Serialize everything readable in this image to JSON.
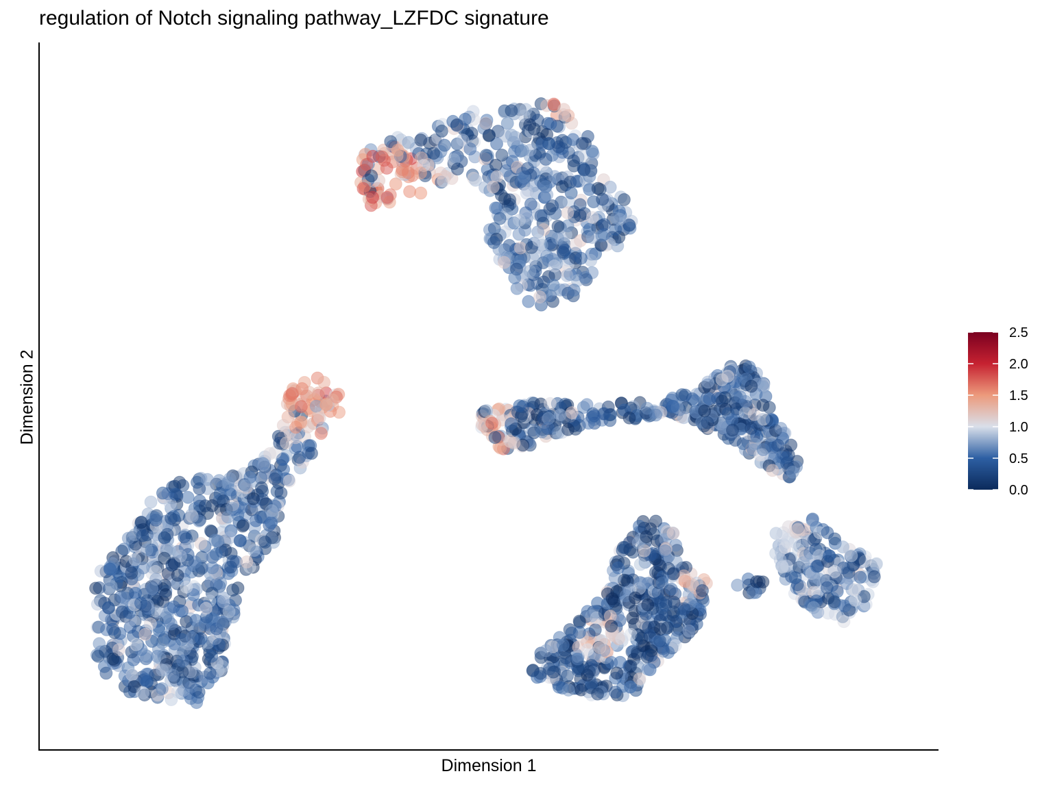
{
  "chart_data": {
    "type": "scatter",
    "title": "regulation of Notch signaling pathway_LZFDC signature",
    "xlabel": "Dimension 1",
    "ylabel": "Dimension 2",
    "x_ticks": "none",
    "y_ticks": "none",
    "xlim": [
      0,
      1
    ],
    "ylim": [
      0,
      1
    ],
    "grid": false,
    "legend": "right",
    "colorbar": {
      "min": 0.0,
      "max": 2.5,
      "ticks": [
        "0.0",
        "0.5",
        "1.0",
        "1.5",
        "2.0",
        "2.5"
      ],
      "colors": [
        "#0b2a5b",
        "#2d5fa3",
        "#d9dfea",
        "#ec9a7c",
        "#c62231",
        "#7a0020"
      ],
      "stops": [
        0.0,
        0.5,
        1.0,
        1.5,
        2.0,
        2.5
      ]
    },
    "point_alpha": 0.5,
    "clusters": [
      {
        "id": "top",
        "n": 520,
        "color_base": 0.55,
        "shape": [
          [
            0.35,
            0.86
          ],
          [
            0.43,
            0.91
          ],
          [
            0.5,
            0.93
          ],
          [
            0.58,
            0.94
          ],
          [
            0.62,
            0.9
          ],
          [
            0.63,
            0.84
          ],
          [
            0.66,
            0.8
          ],
          [
            0.68,
            0.74
          ],
          [
            0.64,
            0.71
          ],
          [
            0.6,
            0.64
          ],
          [
            0.55,
            0.63
          ],
          [
            0.52,
            0.68
          ],
          [
            0.5,
            0.74
          ],
          [
            0.51,
            0.8
          ],
          [
            0.47,
            0.83
          ],
          [
            0.42,
            0.8
          ],
          [
            0.36,
            0.78
          ],
          [
            0.35,
            0.82
          ]
        ],
        "hot": [
          [
            0.37,
            0.83,
            0.05,
            1.6
          ],
          [
            0.42,
            0.82,
            0.04,
            1.3
          ],
          [
            0.6,
            0.93,
            0.03,
            1.5
          ]
        ]
      },
      {
        "id": "bottom-left",
        "n": 760,
        "color_base": 0.5,
        "shape": [
          [
            0.04,
            0.24
          ],
          [
            0.1,
            0.34
          ],
          [
            0.15,
            0.38
          ],
          [
            0.21,
            0.38
          ],
          [
            0.25,
            0.42
          ],
          [
            0.27,
            0.52
          ],
          [
            0.32,
            0.53
          ],
          [
            0.33,
            0.48
          ],
          [
            0.3,
            0.42
          ],
          [
            0.26,
            0.36
          ],
          [
            0.25,
            0.28
          ],
          [
            0.21,
            0.21
          ],
          [
            0.19,
            0.09
          ],
          [
            0.16,
            0.04
          ],
          [
            0.07,
            0.05
          ],
          [
            0.04,
            0.1
          ],
          [
            0.04,
            0.18
          ]
        ],
        "hot": [
          [
            0.3,
            0.48,
            0.05,
            1.4
          ],
          [
            0.28,
            0.52,
            0.04,
            1.6
          ]
        ]
      },
      {
        "id": "right-arm",
        "n": 430,
        "color_base": 0.45,
        "shape": [
          [
            0.49,
            0.45
          ],
          [
            0.49,
            0.48
          ],
          [
            0.52,
            0.49
          ],
          [
            0.58,
            0.49
          ],
          [
            0.64,
            0.49
          ],
          [
            0.7,
            0.49
          ],
          [
            0.75,
            0.51
          ],
          [
            0.79,
            0.55
          ],
          [
            0.82,
            0.54
          ],
          [
            0.84,
            0.47
          ],
          [
            0.87,
            0.4
          ],
          [
            0.86,
            0.36
          ],
          [
            0.82,
            0.4
          ],
          [
            0.78,
            0.44
          ],
          [
            0.72,
            0.47
          ],
          [
            0.64,
            0.46
          ],
          [
            0.58,
            0.44
          ],
          [
            0.52,
            0.41
          ]
        ],
        "hot": [
          [
            0.5,
            0.44,
            0.03,
            1.5
          ],
          [
            0.52,
            0.47,
            0.02,
            1.2
          ]
        ]
      },
      {
        "id": "right-lobe",
        "n": 200,
        "color_base": 0.65,
        "shape": [
          [
            0.84,
            0.3
          ],
          [
            0.88,
            0.32
          ],
          [
            0.92,
            0.28
          ],
          [
            0.96,
            0.25
          ],
          [
            0.95,
            0.19
          ],
          [
            0.92,
            0.16
          ],
          [
            0.88,
            0.18
          ],
          [
            0.85,
            0.22
          ],
          [
            0.84,
            0.26
          ]
        ],
        "hot": [
          [
            0.85,
            0.3,
            0.03,
            1.0
          ]
        ]
      },
      {
        "id": "bottom-right",
        "n": 470,
        "color_base": 0.4,
        "shape": [
          [
            0.55,
            0.1
          ],
          [
            0.63,
            0.19
          ],
          [
            0.66,
            0.28
          ],
          [
            0.69,
            0.32
          ],
          [
            0.72,
            0.3
          ],
          [
            0.73,
            0.25
          ],
          [
            0.76,
            0.22
          ],
          [
            0.82,
            0.2
          ],
          [
            0.84,
            0.22
          ],
          [
            0.79,
            0.23
          ],
          [
            0.76,
            0.2
          ],
          [
            0.75,
            0.15
          ],
          [
            0.71,
            0.11
          ],
          [
            0.67,
            0.05
          ],
          [
            0.61,
            0.05
          ],
          [
            0.56,
            0.07
          ]
        ],
        "hot": [
          [
            0.64,
            0.14,
            0.03,
            1.2
          ],
          [
            0.74,
            0.22,
            0.02,
            1.3
          ]
        ]
      }
    ]
  }
}
